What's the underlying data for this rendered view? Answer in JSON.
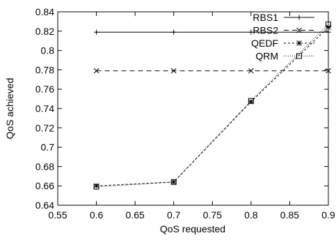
{
  "chart_data": {
    "type": "line",
    "xlabel": "QoS requested",
    "ylabel": "QoS achieved",
    "xlim": [
      0.55,
      0.9
    ],
    "ylim": [
      0.64,
      0.84
    ],
    "xticks": [
      "0.55",
      "0.6",
      "0.65",
      "0.7",
      "0.75",
      "0.8",
      "0.85",
      "0.9"
    ],
    "yticks": [
      "0.64",
      "0.66",
      "0.68",
      "0.7",
      "0.72",
      "0.74",
      "0.76",
      "0.78",
      "0.8",
      "0.82",
      "0.84"
    ],
    "grid": false,
    "legend_position": "top-right",
    "series": [
      {
        "name": "RBS1",
        "marker": "plus",
        "dash": "solid",
        "x": [
          0.6,
          0.7,
          0.8,
          0.9
        ],
        "y": [
          0.819,
          0.819,
          0.819,
          0.819
        ]
      },
      {
        "name": "RBS2",
        "marker": "cross",
        "dash": "dashed",
        "x": [
          0.6,
          0.7,
          0.8,
          0.9
        ],
        "y": [
          0.779,
          0.779,
          0.779,
          0.779
        ]
      },
      {
        "name": "QEDF",
        "marker": "star",
        "dash": "short-dashed",
        "x": [
          0.6,
          0.7,
          0.8,
          0.9
        ],
        "y": [
          0.66,
          0.664,
          0.747,
          0.824
        ]
      },
      {
        "name": "QRM",
        "marker": "square",
        "dash": "dotted",
        "x": [
          0.6,
          0.7,
          0.8,
          0.9
        ],
        "y": [
          0.659,
          0.664,
          0.748,
          0.827
        ]
      }
    ]
  }
}
